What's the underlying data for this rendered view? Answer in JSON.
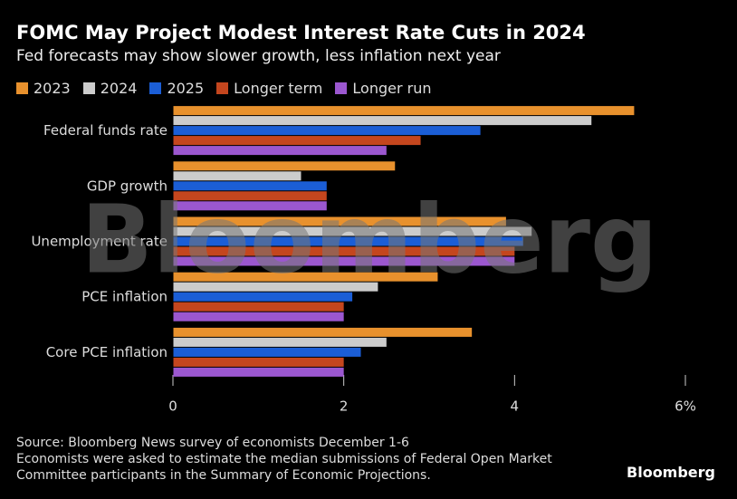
{
  "chart_data": {
    "type": "bar",
    "orientation": "horizontal",
    "title": "FOMC May Project Modest Interest Rate Cuts in 2024",
    "subtitle": "Fed forecasts may show slower growth, less inflation next year",
    "categories": [
      "Federal funds rate",
      "GDP growth",
      "Unemployment rate",
      "PCE inflation",
      "Core PCE inflation"
    ],
    "series": [
      {
        "name": "2023",
        "color": "#e8912d",
        "values": [
          5.4,
          2.6,
          3.9,
          3.1,
          3.5
        ]
      },
      {
        "name": "2024",
        "color": "#cccccc",
        "values": [
          4.9,
          1.5,
          4.2,
          2.4,
          2.5
        ]
      },
      {
        "name": "2025",
        "color": "#1b5ed6",
        "values": [
          3.6,
          1.8,
          4.1,
          2.1,
          2.2
        ]
      },
      {
        "name": "Longer term",
        "color": "#c4461e",
        "values": [
          2.9,
          1.8,
          4.0,
          2.0,
          2.0
        ]
      },
      {
        "name": "Longer run",
        "color": "#9b57cf",
        "values": [
          2.5,
          1.8,
          4.0,
          2.0,
          2.0
        ]
      }
    ],
    "xlim": [
      0,
      6
    ],
    "xticks": [
      0,
      2,
      4,
      {
        "value": 6,
        "label": "6%"
      }
    ],
    "source": "Source: Bloomberg News survey of economists December 1-6",
    "note": "Economists were asked to estimate the median submissions of Federal Open Market Committee participants in the Summary of Economic Projections.",
    "watermark": "Bloomberg",
    "logo": "Bloomberg"
  }
}
